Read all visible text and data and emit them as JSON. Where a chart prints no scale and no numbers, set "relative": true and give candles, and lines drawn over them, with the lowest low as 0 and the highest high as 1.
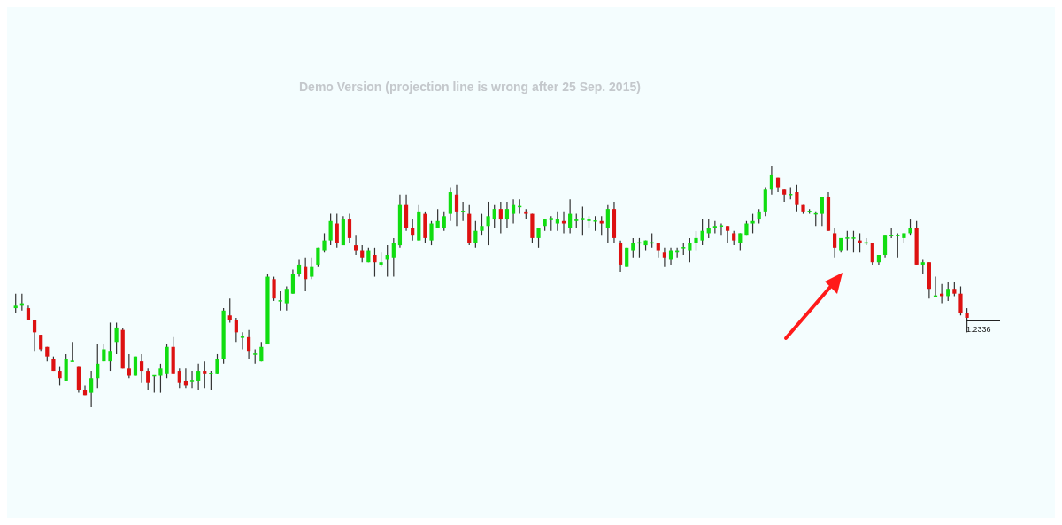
{
  "chart_data": {
    "type": "candlestick",
    "relative": true,
    "annotations": [
      "Demo Version (projection line is wrong after 25 Sep. 2015)",
      "1.2336"
    ],
    "categories": [
      null,
      null,
      null,
      null,
      null,
      null,
      null,
      null,
      null,
      null,
      null,
      null,
      null,
      null,
      null,
      null,
      null,
      null,
      null,
      null,
      null,
      null,
      null,
      null,
      null,
      null,
      null,
      null,
      null,
      null,
      null,
      null,
      null,
      null,
      null,
      null,
      null,
      null,
      null,
      null,
      null,
      null,
      null,
      null,
      null,
      null,
      null,
      null,
      null,
      null,
      null,
      null,
      null,
      null,
      null,
      null,
      null,
      null,
      null,
      null,
      null,
      null,
      null,
      null,
      null,
      null,
      null,
      null,
      null,
      null,
      null,
      null,
      null,
      null,
      null,
      null,
      null,
      null,
      null,
      null,
      null,
      null,
      null,
      null,
      null,
      null,
      null,
      null,
      null,
      null,
      null,
      null,
      null,
      null,
      null,
      null,
      null,
      null,
      null,
      null,
      null,
      null,
      null,
      null,
      null,
      null,
      null,
      null,
      null,
      null,
      null,
      null,
      null,
      null,
      null,
      null,
      null,
      null,
      null,
      null,
      null,
      null,
      null,
      null,
      null,
      null,
      null,
      null,
      null,
      null,
      null,
      null,
      null,
      null,
      null,
      null,
      null,
      null,
      null,
      null,
      null,
      null,
      null,
      null,
      null,
      null,
      null,
      null,
      null,
      null,
      null,
      null
    ],
    "ohlc": [
      [
        0.41,
        0.47,
        0.39,
        0.42
      ],
      [
        0.42,
        0.47,
        0.4,
        0.43
      ],
      [
        0.41,
        0.42,
        0.36,
        0.36
      ],
      [
        0.36,
        0.36,
        0.23,
        0.31
      ],
      [
        0.3,
        0.3,
        0.23,
        0.24
      ],
      [
        0.25,
        0.25,
        0.19,
        0.21
      ],
      [
        0.2,
        0.21,
        0.15,
        0.15
      ],
      [
        0.15,
        0.17,
        0.09,
        0.12
      ],
      [
        0.11,
        0.22,
        0.11,
        0.2
      ],
      [
        0.19,
        0.27,
        0.19,
        0.19
      ],
      [
        0.17,
        0.17,
        0.06,
        0.07
      ],
      [
        0.07,
        0.09,
        0.05,
        0.05
      ],
      [
        0.06,
        0.15,
        0,
        0.12
      ],
      [
        0.12,
        0.26,
        0.08,
        0.18
      ],
      [
        0.19,
        0.26,
        0.19,
        0.24
      ],
      [
        0.19,
        0.35,
        0.15,
        0.23
      ],
      [
        0.27,
        0.35,
        0.22,
        0.33
      ],
      [
        0.32,
        0.33,
        0.16,
        0.16
      ],
      [
        0.16,
        0.22,
        0.12,
        0.13
      ],
      [
        0.13,
        0.21,
        0.13,
        0.21
      ],
      [
        0.19,
        0.22,
        0.1,
        0.15
      ],
      [
        0.15,
        0.16,
        0.07,
        0.1
      ],
      [
        0.13,
        0.13,
        0.06,
        0.13
      ],
      [
        0.13,
        0.18,
        0.06,
        0.16
      ],
      [
        0.14,
        0.26,
        0.12,
        0.25
      ],
      [
        0.25,
        0.29,
        0.14,
        0.14
      ],
      [
        0.15,
        0.16,
        0.08,
        0.1
      ],
      [
        0.11,
        0.16,
        0.08,
        0.09
      ],
      [
        0.11,
        0.15,
        0.08,
        0.11
      ],
      [
        0.11,
        0.18,
        0.07,
        0.15
      ],
      [
        0.15,
        0.19,
        0.08,
        0.14
      ],
      [
        0.14,
        0.15,
        0.07,
        0.14
      ],
      [
        0.14,
        0.22,
        0.14,
        0.2
      ],
      [
        0.2,
        0.41,
        0.18,
        0.4
      ],
      [
        0.38,
        0.45,
        0.35,
        0.36
      ],
      [
        0.36,
        0.37,
        0.27,
        0.31
      ],
      [
        0.29,
        0.31,
        0.24,
        0.29
      ],
      [
        0.29,
        0.32,
        0.2,
        0.23
      ],
      [
        0.22,
        0.24,
        0.18,
        0.22
      ],
      [
        0.19,
        0.27,
        0.19,
        0.25
      ],
      [
        0.26,
        0.55,
        0.26,
        0.54
      ],
      [
        0.53,
        0.54,
        0.44,
        0.45
      ],
      [
        0.44,
        0.48,
        0.4,
        0.44
      ],
      [
        0.43,
        0.5,
        0.4,
        0.49
      ],
      [
        0.47,
        0.57,
        0.47,
        0.55
      ],
      [
        0.55,
        0.61,
        0.54,
        0.59
      ],
      [
        0.58,
        0.62,
        0.48,
        0.53
      ],
      [
        0.54,
        0.62,
        0.53,
        0.58
      ],
      [
        0.59,
        0.66,
        0.58,
        0.66
      ],
      [
        0.65,
        0.72,
        0.64,
        0.69
      ],
      [
        0.69,
        0.8,
        0.67,
        0.77
      ],
      [
        0.76,
        0.8,
        0.66,
        0.68
      ],
      [
        0.67,
        0.79,
        0.67,
        0.78
      ],
      [
        0.78,
        0.8,
        0.68,
        0.7
      ],
      [
        0.67,
        0.71,
        0.63,
        0.65
      ],
      [
        0.65,
        0.67,
        0.6,
        0.62
      ],
      [
        0.6,
        0.66,
        0.6,
        0.65
      ],
      [
        0.63,
        0.66,
        0.54,
        0.6
      ],
      [
        0.59,
        0.64,
        0.58,
        0.6
      ],
      [
        0.61,
        0.67,
        0.54,
        0.63
      ],
      [
        0.62,
        0.7,
        0.54,
        0.68
      ],
      [
        0.67,
        0.88,
        0.66,
        0.84
      ],
      [
        0.84,
        0.88,
        0.73,
        0.74
      ],
      [
        0.74,
        0.78,
        0.69,
        0.71
      ],
      [
        0.69,
        0.84,
        0.69,
        0.81
      ],
      [
        0.8,
        0.81,
        0.68,
        0.7
      ],
      [
        0.69,
        0.77,
        0.67,
        0.76
      ],
      [
        0.74,
        0.82,
        0.74,
        0.77
      ],
      [
        0.74,
        0.81,
        0.73,
        0.79
      ],
      [
        0.8,
        0.91,
        0.77,
        0.89
      ],
      [
        0.88,
        0.92,
        0.75,
        0.81
      ],
      [
        0.81,
        0.85,
        0.77,
        0.81
      ],
      [
        0.8,
        0.84,
        0.67,
        0.68
      ],
      [
        0.68,
        0.77,
        0.66,
        0.73
      ],
      [
        0.73,
        0.8,
        0.71,
        0.75
      ],
      [
        0.75,
        0.85,
        0.67,
        0.79
      ],
      [
        0.78,
        0.84,
        0.74,
        0.82
      ],
      [
        0.82,
        0.85,
        0.72,
        0.78
      ],
      [
        0.78,
        0.85,
        0.74,
        0.82
      ],
      [
        0.8,
        0.86,
        0.76,
        0.84
      ],
      [
        0.83,
        0.86,
        0.8,
        0.83
      ],
      [
        0.81,
        0.82,
        0.78,
        0.8
      ],
      [
        0.8,
        0.8,
        0.68,
        0.7
      ],
      [
        0.7,
        0.74,
        0.66,
        0.74
      ],
      [
        0.75,
        0.78,
        0.73,
        0.78
      ],
      [
        0.78,
        0.79,
        0.73,
        0.78
      ],
      [
        0.76,
        0.81,
        0.73,
        0.78
      ],
      [
        0.77,
        0.81,
        0.72,
        0.76
      ],
      [
        0.74,
        0.86,
        0.72,
        0.8
      ],
      [
        0.77,
        0.8,
        0.74,
        0.78
      ],
      [
        0.78,
        0.83,
        0.71,
        0.78
      ],
      [
        0.77,
        0.79,
        0.74,
        0.78
      ],
      [
        0.77,
        0.79,
        0.73,
        0.77
      ],
      [
        0.77,
        0.79,
        0.71,
        0.76
      ],
      [
        0.74,
        0.84,
        0.68,
        0.82
      ],
      [
        0.82,
        0.85,
        0.68,
        0.7
      ],
      [
        0.68,
        0.69,
        0.56,
        0.59
      ],
      [
        0.58,
        0.66,
        0.58,
        0.66
      ],
      [
        0.65,
        0.7,
        0.62,
        0.68
      ],
      [
        0.68,
        0.7,
        0.62,
        0.68
      ],
      [
        0.67,
        0.69,
        0.65,
        0.69
      ],
      [
        0.68,
        0.72,
        0.66,
        0.68
      ],
      [
        0.68,
        0.68,
        0.62,
        0.65
      ],
      [
        0.64,
        0.66,
        0.58,
        0.62
      ],
      [
        0.61,
        0.66,
        0.59,
        0.65
      ],
      [
        0.64,
        0.66,
        0.62,
        0.65
      ],
      [
        0.66,
        0.68,
        0.63,
        0.66
      ],
      [
        0.65,
        0.7,
        0.6,
        0.68
      ],
      [
        0.68,
        0.73,
        0.65,
        0.7
      ],
      [
        0.69,
        0.78,
        0.67,
        0.73
      ],
      [
        0.72,
        0.78,
        0.7,
        0.74
      ],
      [
        0.74,
        0.77,
        0.72,
        0.75
      ],
      [
        0.75,
        0.76,
        0.71,
        0.75
      ],
      [
        0.75,
        0.75,
        0.68,
        0.73
      ],
      [
        0.72,
        0.73,
        0.67,
        0.69
      ],
      [
        0.68,
        0.72,
        0.65,
        0.72
      ],
      [
        0.71,
        0.77,
        0.71,
        0.76
      ],
      [
        0.76,
        0.8,
        0.72,
        0.77
      ],
      [
        0.78,
        0.82,
        0.76,
        0.81
      ],
      [
        0.81,
        0.91,
        0.79,
        0.9
      ],
      [
        0.9,
        1,
        0.88,
        0.96
      ],
      [
        0.95,
        0.95,
        0.89,
        0.91
      ],
      [
        0.9,
        0.9,
        0.85,
        0.88
      ],
      [
        0.88,
        0.91,
        0.86,
        0.88
      ],
      [
        0.89,
        0.92,
        0.81,
        0.84
      ],
      [
        0.84,
        0.84,
        0.8,
        0.81
      ],
      [
        0.81,
        0.82,
        0.8,
        0.81
      ],
      [
        0.8,
        0.81,
        0.75,
        0.8
      ],
      [
        0.8,
        0.87,
        0.75,
        0.87
      ],
      [
        0.87,
        0.89,
        0.73,
        0.73
      ],
      [
        0.72,
        0.74,
        0.62,
        0.66
      ],
      [
        0.65,
        0.7,
        0.64,
        0.7
      ],
      [
        0.7,
        0.73,
        0.65,
        0.7
      ],
      [
        0.7,
        0.73,
        0.64,
        0.7
      ],
      [
        0.69,
        0.72,
        0.64,
        0.68
      ],
      [
        0.68,
        0.7,
        0.67,
        0.68
      ],
      [
        0.68,
        0.68,
        0.59,
        0.6
      ],
      [
        0.6,
        0.63,
        0.59,
        0.63
      ],
      [
        0.63,
        0.71,
        0.62,
        0.71
      ],
      [
        0.71,
        0.74,
        0.7,
        0.71
      ],
      [
        0.71,
        0.72,
        0.62,
        0.71
      ],
      [
        0.7,
        0.72,
        0.68,
        0.72
      ],
      [
        0.72,
        0.78,
        0.71,
        0.74
      ],
      [
        0.74,
        0.77,
        0.59,
        0.59
      ],
      [
        0.59,
        0.61,
        0.55,
        0.6
      ],
      [
        0.6,
        0.6,
        0.45,
        0.49
      ],
      [
        0.46,
        0.54,
        0.46,
        0.46
      ],
      [
        0.47,
        0.51,
        0.43,
        0.46
      ],
      [
        0.46,
        0.52,
        0.44,
        0.49
      ],
      [
        0.49,
        0.52,
        0.46,
        0.47
      ],
      [
        0.47,
        0.5,
        0.38,
        0.39
      ],
      [
        0.39,
        0.41,
        0.31,
        0.37
      ]
    ]
  }
}
